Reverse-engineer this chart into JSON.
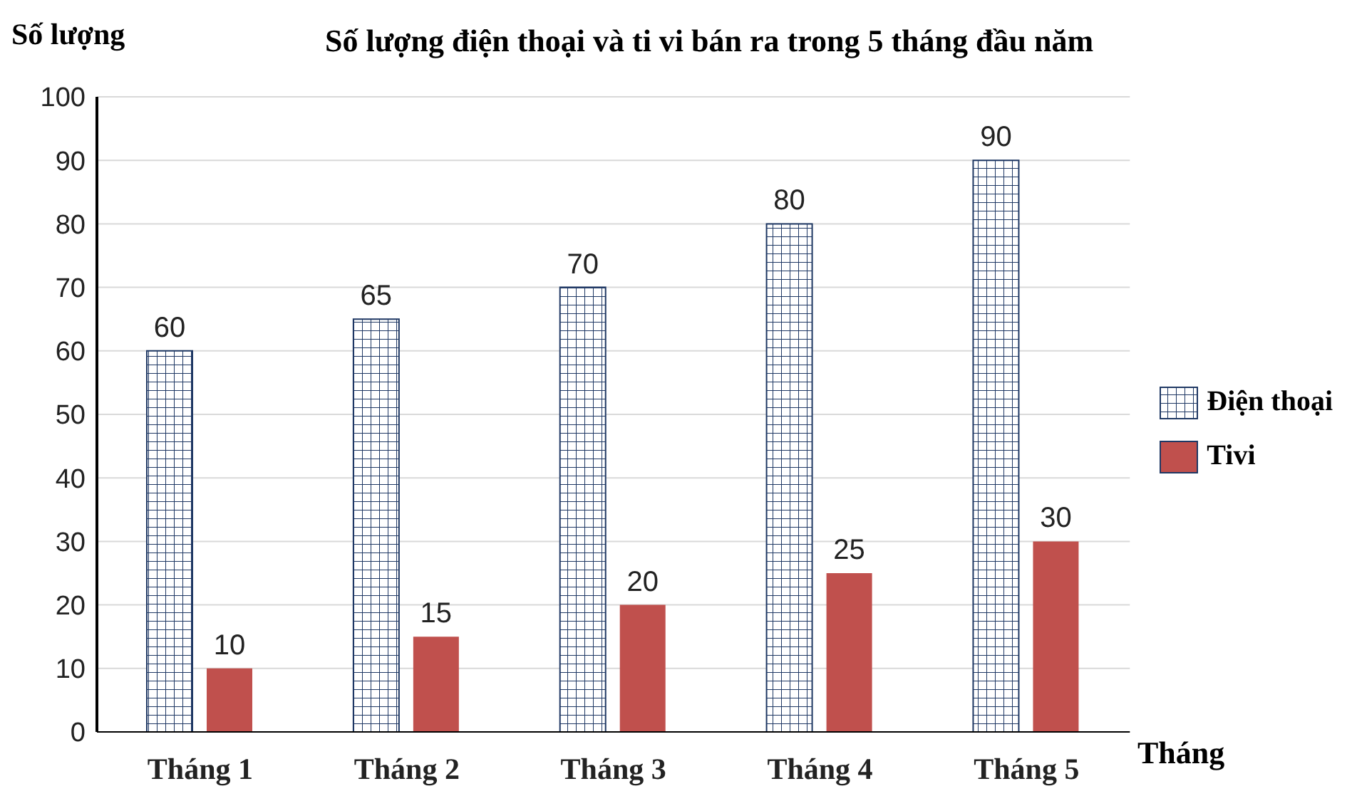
{
  "chart_data": {
    "type": "bar",
    "title": "Số lượng điện thoại và ti vi bán ra trong 5 tháng đầu năm",
    "xlabel": "Tháng",
    "ylabel": "Số lượng",
    "categories": [
      "Tháng 1",
      "Tháng 2",
      "Tháng 3",
      "Tháng 4",
      "Tháng 5"
    ],
    "series": [
      {
        "name": "Điện thoại",
        "color": "#1f3864",
        "values": [
          60,
          65,
          70,
          80,
          90
        ]
      },
      {
        "name": "Tivi",
        "color": "#c0504d",
        "values": [
          10,
          15,
          20,
          25,
          30
        ]
      }
    ],
    "ylim": [
      0,
      100
    ],
    "yticks": [
      0,
      10,
      20,
      30,
      40,
      50,
      60,
      70,
      80,
      90,
      100
    ],
    "grid": "y",
    "legend": "right",
    "data_labels": true
  }
}
